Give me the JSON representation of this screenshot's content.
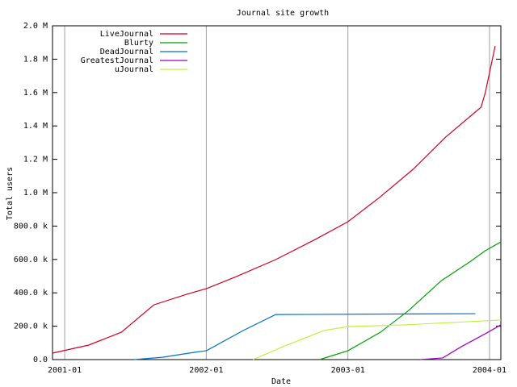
{
  "chart_data": {
    "type": "line",
    "title": "Journal site growth",
    "x_label": "Date",
    "y_label": "Total users",
    "xlim": [
      2000.914,
      2004.08
    ],
    "ylim": [
      0,
      2000000
    ],
    "xticks": [
      {
        "value": 2001,
        "label": "2001-01"
      },
      {
        "value": 2002,
        "label": "2002-01"
      },
      {
        "value": 2003,
        "label": "2003-01"
      },
      {
        "value": 2004,
        "label": "2004-01"
      }
    ],
    "yticks": [
      {
        "value": 0,
        "label": "0.0"
      },
      {
        "value": 200000,
        "label": "200.0 k"
      },
      {
        "value": 400000,
        "label": "400.0 k"
      },
      {
        "value": 600000,
        "label": "600.0 k"
      },
      {
        "value": 800000,
        "label": "800.0 k"
      },
      {
        "value": 1000000,
        "label": "1.0 M"
      },
      {
        "value": 1200000,
        "label": "1.2 M"
      },
      {
        "value": 1400000,
        "label": "1.4 M"
      },
      {
        "value": 1600000,
        "label": "1.6 M"
      },
      {
        "value": 1800000,
        "label": "1.8 M"
      },
      {
        "value": 2000000,
        "label": "2.0 M"
      }
    ],
    "xgrid": true,
    "legend": "top-left",
    "series": [
      {
        "name": "LiveJournal",
        "color": "#d00020",
        "x": [
          2000.91,
          2001.17,
          2001.4,
          2001.63,
          2001.86,
          2002.0,
          2002.2,
          2002.49,
          2002.77,
          2003.0,
          2003.23,
          2003.46,
          2003.69,
          2003.94,
          2003.97,
          2004.04
        ],
        "values": [
          38000,
          87000,
          164000,
          328000,
          391000,
          425000,
          493000,
          599000,
          720000,
          826000,
          976000,
          1140000,
          1333000,
          1512000,
          1599000,
          1879000
        ]
      },
      {
        "name": "Blurty",
        "color": "#00a000",
        "x": [
          2002.8,
          2003.0,
          2003.23,
          2003.43,
          2003.66,
          2003.86,
          2003.97,
          2004.08
        ],
        "values": [
          0,
          53000,
          164000,
          295000,
          473000,
          585000,
          652000,
          705000
        ]
      },
      {
        "name": "DeadJournal",
        "color": "#0070c8",
        "x": [
          2001.49,
          2001.69,
          2001.91,
          2002.0,
          2002.26,
          2002.49,
          2003.9
        ],
        "values": [
          0,
          14000,
          43000,
          53000,
          174000,
          270000,
          275000
        ]
      },
      {
        "name": "GreatestJournal",
        "color": "#a000c0",
        "x": [
          2003.51,
          2003.67,
          2003.8,
          2003.97,
          2004.08
        ],
        "values": [
          0,
          10000,
          77000,
          155000,
          208000
        ]
      },
      {
        "name": "uJournal",
        "color": "#c0f040",
        "x": [
          2002.33,
          2002.54,
          2002.83,
          2003.0,
          2003.4,
          2004.08
        ],
        "values": [
          0,
          77000,
          174000,
          198000,
          208000,
          237000
        ]
      }
    ]
  }
}
